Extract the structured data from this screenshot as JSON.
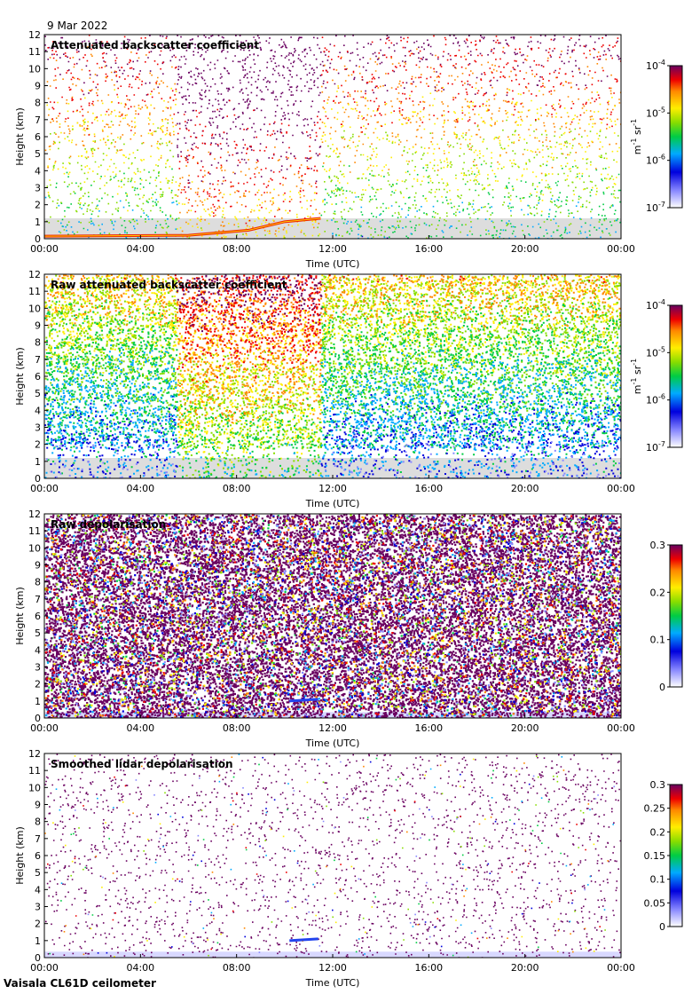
{
  "date": "9 Mar 2022",
  "footer": "Vaisala CL61D ceilometer",
  "chart_data": [
    {
      "type": "heatmap",
      "title": "Attenuated backscatter coefficient",
      "xlabel": "Time (UTC)",
      "ylabel": "Height (km)",
      "xticks": [
        "00:00",
        "04:00",
        "08:00",
        "12:00",
        "16:00",
        "20:00",
        "00:00"
      ],
      "yticks": [
        "0",
        "1",
        "2",
        "3",
        "4",
        "5",
        "6",
        "7",
        "8",
        "9",
        "10",
        "11",
        "12"
      ],
      "ylim": [
        0,
        12
      ],
      "xlim_hours": [
        0,
        24
      ],
      "colorbar": {
        "scale": "log",
        "ticks": [
          {
            "base": "10",
            "exp": "-7"
          },
          {
            "base": "10",
            "exp": "-6"
          },
          {
            "base": "10",
            "exp": "-5"
          },
          {
            "base": "10",
            "exp": "-4"
          }
        ],
        "unit": {
          "a": "m",
          "ea": "-1",
          "b": " sr",
          "eb": "-1"
        }
      },
      "features": {
        "cloud_layer": [
          {
            "h": 0,
            "km": 0.15
          },
          {
            "h": 6,
            "km": 0.2
          },
          {
            "h": 8.5,
            "km": 0.5
          },
          {
            "h": 10,
            "km": 1.0
          },
          {
            "h": 11.5,
            "km": 1.2
          }
        ],
        "high_signal_region_hours": [
          5.5,
          11.5
        ],
        "noise_floor_km_after_noon": 1.2
      }
    },
    {
      "type": "heatmap",
      "title": "Raw attenuated backscatter coefficient",
      "xlabel": "Time (UTC)",
      "ylabel": "Height (km)",
      "xticks": [
        "00:00",
        "04:00",
        "08:00",
        "12:00",
        "16:00",
        "20:00",
        "00:00"
      ],
      "yticks": [
        "0",
        "1",
        "2",
        "3",
        "4",
        "5",
        "6",
        "7",
        "8",
        "9",
        "10",
        "11",
        "12"
      ],
      "ylim": [
        0,
        12
      ],
      "xlim_hours": [
        0,
        24
      ],
      "colorbar": {
        "scale": "log",
        "ticks": [
          {
            "base": "10",
            "exp": "-7"
          },
          {
            "base": "10",
            "exp": "-6"
          },
          {
            "base": "10",
            "exp": "-5"
          },
          {
            "base": "10",
            "exp": "-4"
          }
        ],
        "unit": {
          "a": "m",
          "ea": "-1",
          "b": " sr",
          "eb": "-1"
        }
      }
    },
    {
      "type": "heatmap",
      "title": "Raw depolarisation",
      "xlabel": "Time (UTC)",
      "ylabel": "Height (km)",
      "xticks": [
        "00:00",
        "04:00",
        "08:00",
        "12:00",
        "16:00",
        "20:00",
        "00:00"
      ],
      "yticks": [
        "0",
        "1",
        "2",
        "3",
        "4",
        "5",
        "6",
        "7",
        "8",
        "9",
        "10",
        "11",
        "12"
      ],
      "ylim": [
        0,
        12
      ],
      "xlim_hours": [
        0,
        24
      ],
      "colorbar": {
        "scale": "linear",
        "range": [
          0,
          0.3
        ],
        "ticks": [
          "0",
          "0.1",
          "0.2",
          "0.3"
        ]
      }
    },
    {
      "type": "heatmap",
      "title": "Smoothed lidar depolarisation",
      "xlabel": "Time (UTC)",
      "ylabel": "Height (km)",
      "xticks": [
        "00:00",
        "04:00",
        "08:00",
        "12:00",
        "16:00",
        "20:00",
        "00:00"
      ],
      "yticks": [
        "0",
        "1",
        "2",
        "3",
        "4",
        "5",
        "6",
        "7",
        "8",
        "9",
        "10",
        "11",
        "12"
      ],
      "ylim": [
        0,
        12
      ],
      "xlim_hours": [
        0,
        24
      ],
      "colorbar": {
        "scale": "linear",
        "range": [
          0,
          0.3
        ],
        "ticks": [
          "0",
          "0.05",
          "0.1",
          "0.15",
          "0.2",
          "0.25",
          "0.3"
        ]
      }
    }
  ]
}
